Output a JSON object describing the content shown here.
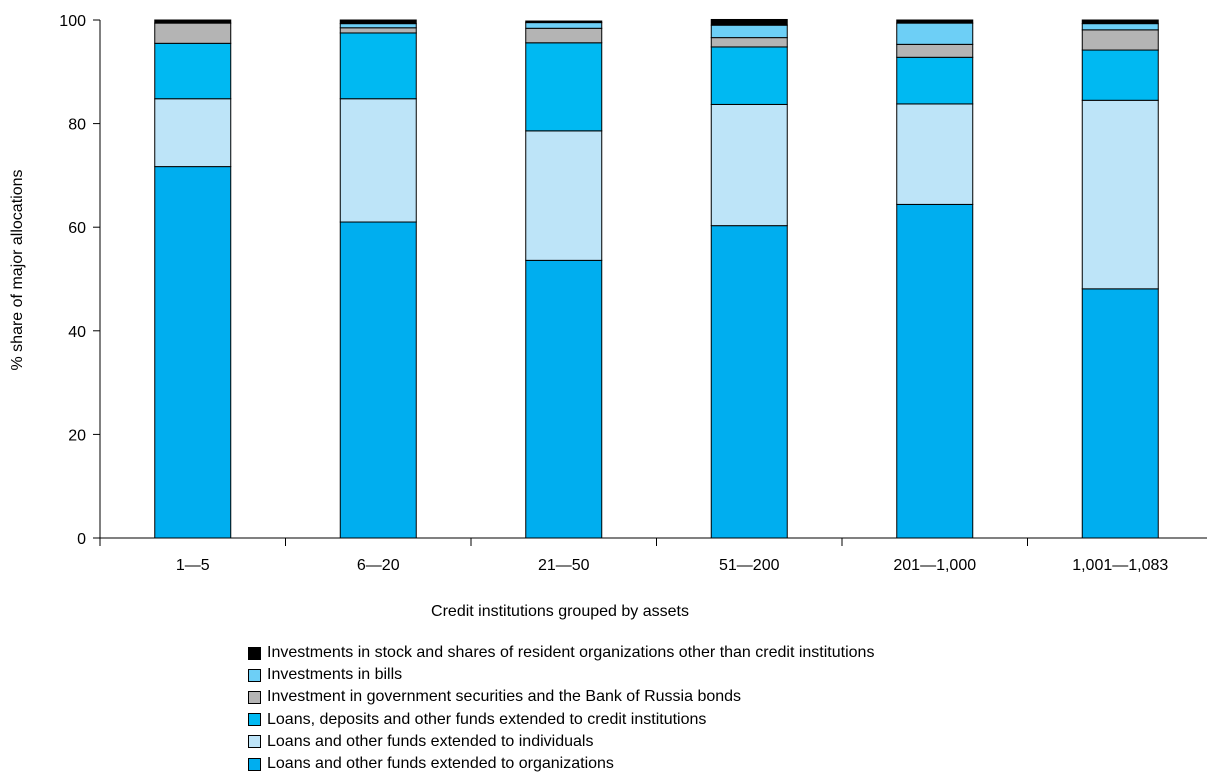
{
  "chart_data": {
    "type": "bar",
    "stacked": true,
    "xlabel": "Credit institutions grouped by assets",
    "ylabel": "% share of major allocations",
    "ylim": [
      0,
      100
    ],
    "yticks": [
      0,
      20,
      40,
      60,
      80,
      100
    ],
    "categories": [
      "1—5",
      "6—20",
      "21—50",
      "51—200",
      "201—1,000",
      "1,001—1,083"
    ],
    "legend_position": "bottom",
    "series": [
      {
        "name": "Loans and other funds extended to organizations",
        "color": "#00aeef",
        "values": [
          71.7,
          61.0,
          53.6,
          60.3,
          64.4,
          48.1
        ]
      },
      {
        "name": "Loans and other funds extended to individuals",
        "color": "#bde4f8",
        "values": [
          13.1,
          23.8,
          25.0,
          23.4,
          19.4,
          36.4
        ]
      },
      {
        "name": "Loans, deposits and other funds extended to credit institutions",
        "color": "#00b9f2",
        "values": [
          10.7,
          12.7,
          17.0,
          11.1,
          9.0,
          9.7
        ]
      },
      {
        "name": "Investment in government securities and the Bank of Russia bonds",
        "color": "#b4b4b4",
        "values": [
          3.9,
          1.0,
          2.8,
          1.8,
          2.5,
          3.9
        ]
      },
      {
        "name": "Investments in bills",
        "color": "#6dcff6",
        "values": [
          0.0,
          0.8,
          1.1,
          2.4,
          4.1,
          1.2
        ]
      },
      {
        "name": "Investments in stock and shares of resident organizations other than credit institutions",
        "color": "#000000",
        "values": [
          0.6,
          0.7,
          0.3,
          1.1,
          0.6,
          0.7
        ]
      }
    ]
  }
}
